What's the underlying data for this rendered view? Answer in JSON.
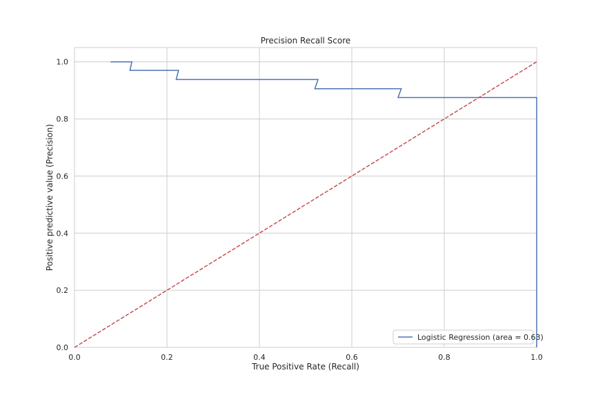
{
  "chart_data": {
    "type": "line",
    "title": "Precision Recall Score",
    "xlabel": "True Positive Rate (Recall)",
    "ylabel": "Positive predictive value (Precision)",
    "xlim": [
      0.0,
      1.0
    ],
    "ylim": [
      0.0,
      1.05
    ],
    "xticks": [
      "0.0",
      "0.2",
      "0.4",
      "0.6",
      "0.8",
      "1.0"
    ],
    "yticks": [
      "0.0",
      "0.2",
      "0.4",
      "0.6",
      "0.8",
      "1.0"
    ],
    "grid": true,
    "legend_position": "lower-right",
    "series": [
      {
        "name": "Logistic Regression (area = 0.63)",
        "color": "#4c72b0",
        "style": "solid",
        "x": [
          0.078,
          0.124,
          0.12,
          0.225,
          0.22,
          0.527,
          0.52,
          0.707,
          0.7,
          1.0,
          1.0
        ],
        "y": [
          1.0,
          1.0,
          0.97,
          0.97,
          0.938,
          0.938,
          0.906,
          0.906,
          0.875,
          0.875,
          0.0
        ]
      },
      {
        "color": "#c44e52",
        "style": "dashed",
        "x": [
          0.0,
          1.0
        ],
        "y": [
          0.0,
          1.0
        ]
      }
    ]
  }
}
